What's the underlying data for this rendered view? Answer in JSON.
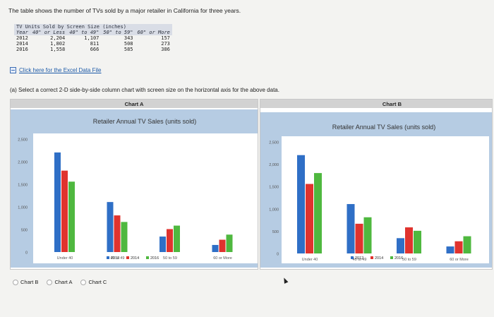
{
  "intro": "The table shows the number of TVs sold by a major retailer in California for three years.",
  "table": {
    "title": "TV Units Sold by Screen Size (inches)",
    "headers": [
      "Year",
      "40\" or Less",
      "40\" to 49\"",
      "50\" to 59\"",
      "60\" or More"
    ],
    "rows": [
      [
        "2012",
        "2,204",
        "1,107",
        "343",
        "157"
      ],
      [
        "2014",
        "1,802",
        "811",
        "508",
        "273"
      ],
      [
        "2016",
        "1,558",
        "666",
        "585",
        "386"
      ]
    ]
  },
  "excel_link": "Click here for the Excel Data File",
  "question": "(a) Select a correct 2-D side-by-side column chart with screen size on the horizontal axis for the above data.",
  "choices": [
    "Chart B",
    "Chart A",
    "Chart C"
  ],
  "colors": {
    "2012": "#2f6fc6",
    "2014": "#e0332e",
    "2016": "#4fb83f",
    "plot_bg": "#b6cce3"
  },
  "chart_data": [
    {
      "type": "bar",
      "panel_label": "Chart A",
      "title": "Retailer Annual TV Sales (units sold)",
      "categories": [
        "Under 40",
        "40 to 49",
        "50 to 59",
        "60 or More"
      ],
      "series": [
        {
          "name": "2012",
          "values": [
            2204,
            1107,
            343,
            157
          ]
        },
        {
          "name": "2014",
          "values": [
            1802,
            811,
            508,
            273
          ]
        },
        {
          "name": "2016",
          "values": [
            1558,
            666,
            585,
            386
          ]
        }
      ],
      "yticks": [
        "0",
        "500",
        "1,000",
        "1,500",
        "2,000",
        "2,500"
      ],
      "ylim": [
        0,
        2500
      ],
      "legend": "bottom",
      "grid": false
    },
    {
      "type": "bar",
      "panel_label": "Chart B",
      "title": "Retailer Annual TV Sales (units sold)",
      "categories": [
        "Under 40",
        "40 to 49",
        "50 to 59",
        "60 or More"
      ],
      "series": [
        {
          "name": "2012",
          "values": [
            2204,
            1107,
            343,
            157
          ]
        },
        {
          "name": "2014",
          "values": [
            1558,
            666,
            585,
            273
          ]
        },
        {
          "name": "2016",
          "values": [
            1802,
            811,
            508,
            386
          ]
        }
      ],
      "yticks": [
        "0",
        "500",
        "1,000",
        "1,500",
        "2,000",
        "2,500"
      ],
      "ylim": [
        0,
        2500
      ],
      "legend": "bottom",
      "grid": false
    }
  ]
}
